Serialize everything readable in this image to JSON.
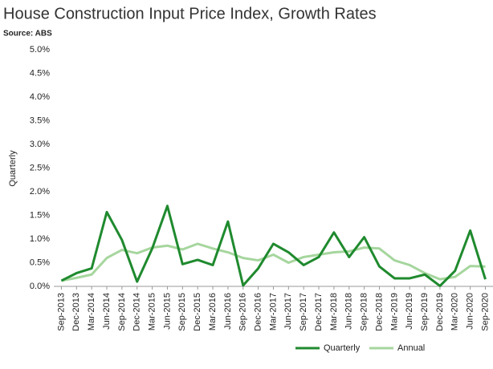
{
  "chart_data": {
    "type": "line",
    "title": "House Construction Input Price Index, Growth Rates",
    "subtitle": "Source: ABS",
    "y_label": "Quarterly",
    "categories": [
      "Sep-2013",
      "Dec-2013",
      "Mar-2014",
      "Jun-2014",
      "Sep-2014",
      "Dec-2014",
      "Mar-2015",
      "Jun-2015",
      "Sep-2015",
      "Dec-2015",
      "Mar-2016",
      "Jun-2016",
      "Sep-2016",
      "Dec-2016",
      "Mar-2017",
      "Jun-2017",
      "Sep-2017",
      "Dec-2017",
      "Mar-2018",
      "Jun-2018",
      "Sep-2018",
      "Dec-2018",
      "Mar-2019",
      "Jun-2019",
      "Sep-2019",
      "Dec-2019",
      "Mar-2020",
      "Jun-2020",
      "Sep-2020"
    ],
    "series": [
      {
        "name": "Quarterly",
        "color": "#1f8a2e",
        "values": [
          0.12,
          0.28,
          0.38,
          1.57,
          0.98,
          0.1,
          0.8,
          1.7,
          0.47,
          0.56,
          0.45,
          1.37,
          0.02,
          0.38,
          0.9,
          0.72,
          0.45,
          0.62,
          1.14,
          0.62,
          1.04,
          0.42,
          0.17,
          0.17,
          0.25,
          0.01,
          0.33,
          1.18,
          0.15
        ]
      },
      {
        "name": "Annual",
        "color": "#a6d69e",
        "values": [
          0.12,
          0.18,
          0.25,
          0.6,
          0.77,
          0.7,
          0.82,
          0.86,
          0.78,
          0.9,
          0.8,
          0.72,
          0.6,
          0.55,
          0.67,
          0.5,
          0.62,
          0.67,
          0.72,
          0.74,
          0.82,
          0.8,
          0.55,
          0.45,
          0.28,
          0.15,
          0.2,
          0.43,
          0.42
        ]
      }
    ],
    "ylim": [
      0,
      5
    ],
    "yticks": [
      {
        "value": 0,
        "label": "0.0%"
      },
      {
        "value": 0.5,
        "label": "0.5%"
      },
      {
        "value": 1,
        "label": "1.0%"
      },
      {
        "value": 1.5,
        "label": "1.5%"
      },
      {
        "value": 2,
        "label": "2.0%"
      },
      {
        "value": 2.5,
        "label": "2.5%"
      },
      {
        "value": 3,
        "label": "3.0%"
      },
      {
        "value": 3.5,
        "label": "3.5%"
      },
      {
        "value": 4,
        "label": "4.0%"
      },
      {
        "value": 4.5,
        "label": "4.5%"
      },
      {
        "value": 5,
        "label": "5.0%"
      }
    ],
    "legend": "bottom"
  }
}
